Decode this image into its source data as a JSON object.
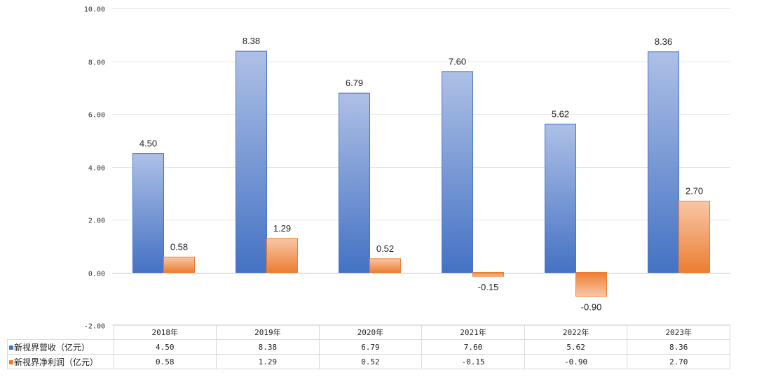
{
  "chart_data": {
    "type": "bar",
    "categories": [
      "2018年",
      "2019年",
      "2020年",
      "2021年",
      "2022年",
      "2023年"
    ],
    "series": [
      {
        "name": "新视界营收（亿元）",
        "values": [
          4.5,
          8.38,
          6.79,
          7.6,
          5.62,
          8.36
        ],
        "labels": [
          "4.50",
          "8.38",
          "6.79",
          "7.60",
          "5.62",
          "8.36"
        ],
        "color": "#4472C4"
      },
      {
        "name": "新视界净利润（亿元）",
        "values": [
          0.58,
          1.29,
          0.52,
          -0.15,
          -0.9,
          2.7
        ],
        "labels": [
          "0.58",
          "1.29",
          "0.52",
          "-0.15",
          "-0.90",
          "2.70"
        ],
        "color": "#ED7D31"
      }
    ],
    "ylim": [
      -2,
      10
    ],
    "yticks": [
      "-2.00",
      "0.00",
      "2.00",
      "4.00",
      "6.00",
      "8.00",
      "10.00"
    ],
    "grid": true,
    "legend": "data table (bottom)",
    "title": "",
    "xlabel": "",
    "ylabel": ""
  }
}
